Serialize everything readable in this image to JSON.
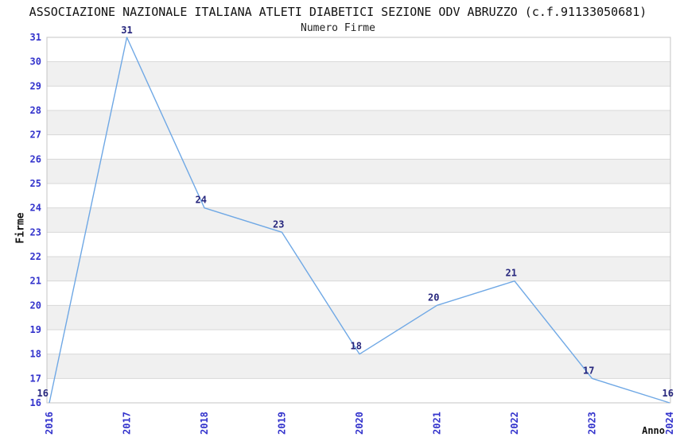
{
  "chart_data": {
    "type": "line",
    "title": "ASSOCIAZIONE NAZIONALE ITALIANA ATLETI DIABETICI SEZIONE ODV ABRUZZO (c.f.91133050681)",
    "subtitle": "Numero Firme",
    "xlabel": "Anno",
    "ylabel": "Firme",
    "categories": [
      "2016",
      "2017",
      "2018",
      "2019",
      "2020",
      "2021",
      "2022",
      "2023",
      "2024"
    ],
    "values": [
      16,
      31,
      24,
      23,
      18,
      20,
      21,
      17,
      16
    ],
    "ylim": [
      16,
      31
    ],
    "ytick_step": 1,
    "grid": true,
    "legend_position": "none",
    "band_pattern": "alternating horizontal bands, white and gray",
    "colors": {
      "line": "#6fa8e5",
      "data_label": "#26267d",
      "tick_label": "#3333cc",
      "band": "#f0f0f0",
      "gridline": "#d8d8d8",
      "border": "#c4c4c4",
      "title": "#111111"
    }
  }
}
